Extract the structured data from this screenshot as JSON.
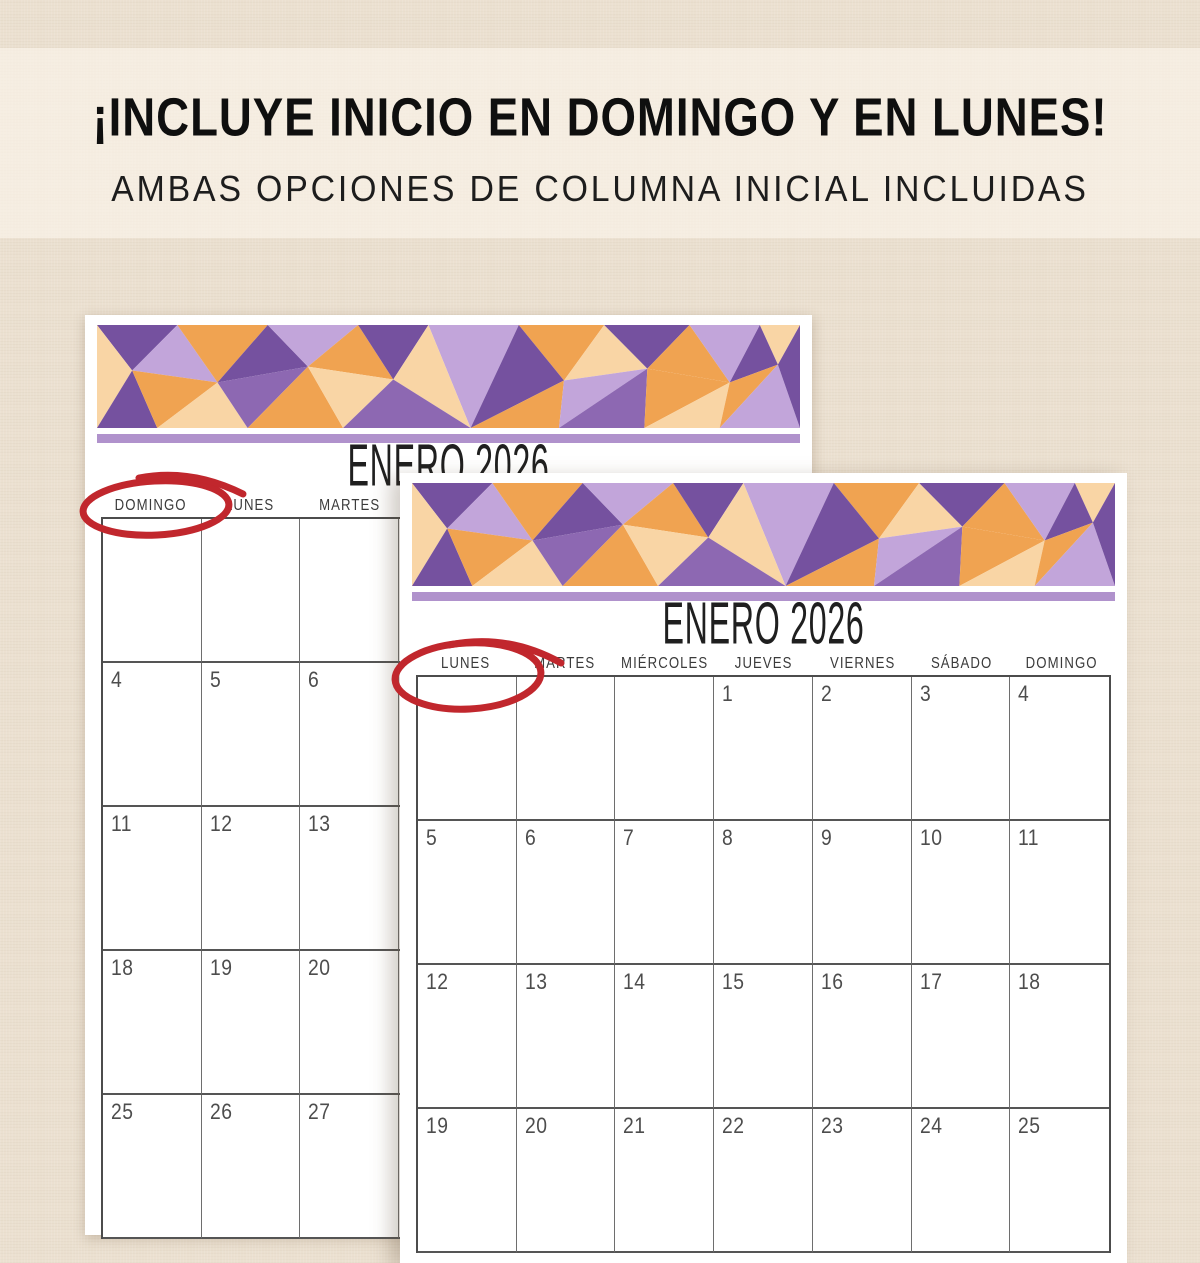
{
  "heading": {
    "title": "¡INCLUYE INICIO EN DOMINGO Y EN LUNES!",
    "subtitle": "AMBAS OPCIONES DE COLUMNA INICIAL INCLUIDAS"
  },
  "calendars": {
    "back": {
      "month_title": "ENERO 2026",
      "start_day": "DOMINGO",
      "circled_day": "DOMINGO",
      "day_headers": [
        "DOMINGO",
        "LUNES",
        "MARTES",
        "",
        "",
        "",
        ""
      ],
      "weeks": [
        [
          "",
          "",
          "",
          "",
          "",
          "",
          ""
        ],
        [
          "4",
          "5",
          "6",
          "",
          "",
          "",
          ""
        ],
        [
          "11",
          "12",
          "13",
          "",
          "",
          "",
          ""
        ],
        [
          "18",
          "19",
          "20",
          "",
          "",
          "",
          ""
        ],
        [
          "25",
          "26",
          "27",
          "",
          "",
          "",
          ""
        ]
      ]
    },
    "front": {
      "month_title": "ENERO 2026",
      "start_day": "LUNES",
      "circled_day": "LUNES",
      "day_headers": [
        "LUNES",
        "MARTES",
        "MIÉRCOLES",
        "JUEVES",
        "VIERNES",
        "SÁBADO",
        "DOMINGO"
      ],
      "weeks": [
        [
          "",
          "",
          "",
          "1",
          "2",
          "3",
          "4"
        ],
        [
          "5",
          "6",
          "7",
          "8",
          "9",
          "10",
          "11"
        ],
        [
          "12",
          "13",
          "14",
          "15",
          "16",
          "17",
          "18"
        ],
        [
          "19",
          "20",
          "21",
          "22",
          "23",
          "24",
          "25"
        ]
      ]
    }
  },
  "colors": {
    "accent_red_circle": "#c1272d",
    "mosaic_dark_purple": "#75519f",
    "mosaic_medium_purple": "#8d68b2",
    "mosaic_lavender": "#c2a5da",
    "mosaic_orange": "#f0a351",
    "mosaic_peach": "#f9d5a5",
    "divider_bar_purple": "#b092cc",
    "canvas_background": "#ebe0d0",
    "page_background": "#ffffff",
    "grid_line": "#555555"
  }
}
